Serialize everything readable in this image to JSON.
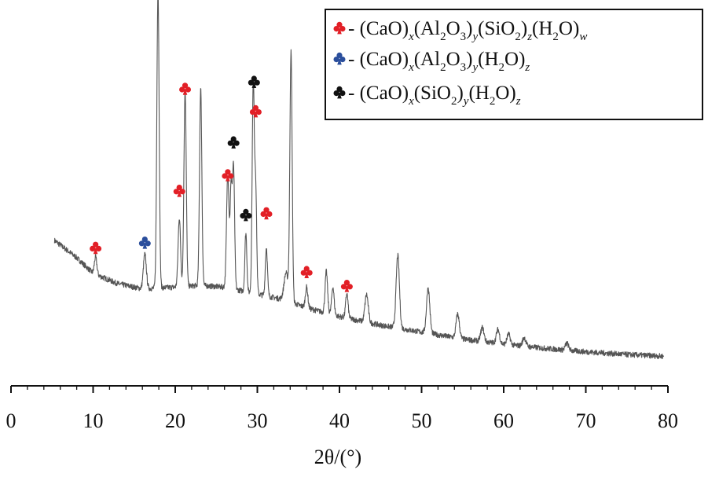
{
  "colors": {
    "red": "#e21f26",
    "blue": "#2a4e9c",
    "black": "#111111",
    "trace": "#555555"
  },
  "legend": [
    {
      "marker_color": "red",
      "prefix": "- ",
      "text": "(CaO)x(Al2O3)y(SiO2)z(H2O)w",
      "parts": [
        [
          "(CaO)",
          ""
        ],
        [
          "x",
          "sub-i"
        ],
        [
          "(Al",
          ""
        ],
        [
          "2",
          "sub"
        ],
        [
          "O",
          ""
        ],
        [
          "3",
          "sub"
        ],
        [
          ")",
          ""
        ],
        [
          "y",
          "sub-i"
        ],
        [
          "(SiO",
          ""
        ],
        [
          "2",
          "sub"
        ],
        [
          ")",
          ""
        ],
        [
          "z",
          "sub-i"
        ],
        [
          "(H",
          ""
        ],
        [
          "2",
          "sub"
        ],
        [
          "O)",
          ""
        ],
        [
          "w",
          "sub-i"
        ]
      ]
    },
    {
      "marker_color": "blue",
      "prefix": "- ",
      "text": "(CaO)x(Al2O3)y(H2O)z",
      "parts": [
        [
          "(CaO)",
          ""
        ],
        [
          "x",
          "sub-i"
        ],
        [
          "(Al",
          ""
        ],
        [
          "2",
          "sub"
        ],
        [
          "O",
          ""
        ],
        [
          "3",
          "sub"
        ],
        [
          ")",
          ""
        ],
        [
          "y",
          "sub-i"
        ],
        [
          "(H",
          ""
        ],
        [
          "2",
          "sub"
        ],
        [
          "O)",
          ""
        ],
        [
          "z",
          "sub-i"
        ]
      ]
    },
    {
      "marker_color": "black",
      "prefix": "- ",
      "text": "(CaO)x(SiO2)y(H2O)z",
      "parts": [
        [
          "(CaO)",
          ""
        ],
        [
          "x",
          "sub-i"
        ],
        [
          "(SiO",
          ""
        ],
        [
          "2",
          "sub"
        ],
        [
          ")",
          ""
        ],
        [
          "y",
          "sub-i"
        ],
        [
          "(H",
          ""
        ],
        [
          "2",
          "sub"
        ],
        [
          "O)",
          ""
        ],
        [
          "z",
          "sub-i"
        ]
      ]
    }
  ],
  "chart_data": {
    "type": "line",
    "title": "",
    "xlabel": "2θ/(°)",
    "ylabel": "",
    "xlim": [
      0,
      80
    ],
    "ylim": [
      0,
      100
    ],
    "x_ticks": [
      0,
      10,
      20,
      30,
      40,
      50,
      60,
      70,
      80
    ],
    "y_axis_shown": false,
    "grid": false,
    "legend_position": "top-right",
    "baseline": [
      [
        5.3,
        35.0
      ],
      [
        8,
        30.0
      ],
      [
        10,
        25.5
      ],
      [
        13,
        22.5
      ],
      [
        16,
        21.0
      ],
      [
        20,
        21.5
      ],
      [
        23,
        22.0
      ],
      [
        26,
        21.5
      ],
      [
        30,
        19.5
      ],
      [
        33,
        18.0
      ],
      [
        36,
        15.5
      ],
      [
        40,
        13.0
      ],
      [
        45,
        10.5
      ],
      [
        50,
        8.5
      ],
      [
        55,
        6.5
      ],
      [
        60,
        5.0
      ],
      [
        65,
        3.8
      ],
      [
        70,
        2.8
      ],
      [
        75,
        2.0
      ],
      [
        79.5,
        1.5
      ]
    ],
    "peaks": [
      [
        10.3,
        5,
        0.15
      ],
      [
        16.3,
        10,
        0.18
      ],
      [
        17.9,
        86,
        0.14
      ],
      [
        20.5,
        20,
        0.15
      ],
      [
        21.2,
        57,
        0.14
      ],
      [
        23.1,
        57,
        0.14
      ],
      [
        26.4,
        33,
        0.15
      ],
      [
        26.8,
        28,
        0.12
      ],
      [
        27.1,
        35,
        0.13
      ],
      [
        28.6,
        17,
        0.12
      ],
      [
        29.5,
        61,
        0.13
      ],
      [
        29.8,
        30,
        0.12
      ],
      [
        31.1,
        14,
        0.13
      ],
      [
        33.5,
        8,
        0.25
      ],
      [
        34.1,
        72,
        0.14
      ],
      [
        36.0,
        6,
        0.15
      ],
      [
        38.4,
        12,
        0.15
      ],
      [
        39.2,
        8,
        0.15
      ],
      [
        40.9,
        7,
        0.15
      ],
      [
        43.3,
        8,
        0.2
      ],
      [
        47.1,
        21,
        0.2
      ],
      [
        50.8,
        13,
        0.2
      ],
      [
        54.4,
        7,
        0.2
      ],
      [
        57.4,
        4,
        0.2
      ],
      [
        59.3,
        4,
        0.2
      ],
      [
        60.6,
        3,
        0.2
      ],
      [
        62.5,
        2.5,
        0.2
      ],
      [
        67.7,
        2,
        0.2
      ]
    ],
    "markers": [
      {
        "x": 10.3,
        "y": 33.0,
        "color": "red"
      },
      {
        "x": 16.3,
        "y": 34.5,
        "color": "blue"
      },
      {
        "x": 20.5,
        "y": 49.5,
        "color": "red"
      },
      {
        "x": 21.2,
        "y": 79.0,
        "color": "red"
      },
      {
        "x": 26.4,
        "y": 54.0,
        "color": "red"
      },
      {
        "x": 27.1,
        "y": 63.5,
        "color": "black"
      },
      {
        "x": 28.6,
        "y": 42.5,
        "color": "black"
      },
      {
        "x": 29.6,
        "y": 81.0,
        "color": "black"
      },
      {
        "x": 29.8,
        "y": 72.5,
        "color": "red"
      },
      {
        "x": 31.1,
        "y": 43.0,
        "color": "red"
      },
      {
        "x": 36.0,
        "y": 26.0,
        "color": "red"
      },
      {
        "x": 40.9,
        "y": 22.0,
        "color": "red"
      }
    ]
  }
}
